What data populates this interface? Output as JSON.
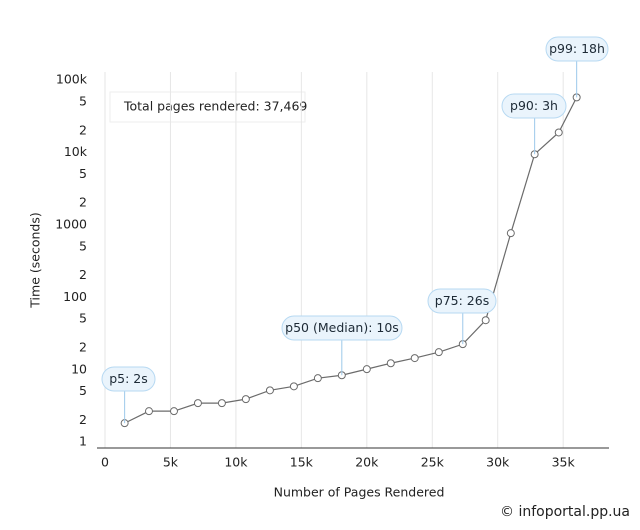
{
  "chart_data": {
    "type": "line",
    "x_label": "Number of Pages Rendered",
    "y_label": "Time (seconds)",
    "note": "Total pages rendered: 37,469",
    "watermark": "© infoportal.pp.ua",
    "log_y": true,
    "grid": true,
    "color": "#6b6b6b",
    "x": [
      1500,
      3360,
      5270,
      7100,
      8930,
      10760,
      12600,
      14430,
      16260,
      18090,
      20000,
      21830,
      23660,
      25500,
      27330,
      29080,
      31000,
      32820,
      34660,
      36030
    ],
    "values": [
      1.83,
      2.68,
      2.68,
      3.46,
      3.46,
      3.93,
      5.2,
      5.9,
      7.65,
      8.4,
      10.2,
      12.3,
      14.5,
      17.5,
      22.6,
      48.4,
      771,
      9500,
      19000,
      58000
    ],
    "annotations": [
      "p5: 2s",
      "p50 (Median): 10s",
      "p75: 26s",
      "p90: 3h",
      "p99: 18h"
    ],
    "xlim": [
      0,
      38500
    ],
    "xticks": [
      0,
      {
        "value": 5000,
        "label": "5k"
      },
      {
        "value": 10000,
        "label": "10k"
      },
      {
        "value": 15000,
        "label": "15k"
      },
      {
        "value": 20000,
        "label": "20k"
      },
      {
        "value": 25000,
        "label": "25k"
      },
      {
        "value": 30000,
        "label": "30k"
      },
      {
        "value": 35000,
        "label": "35k"
      }
    ],
    "ylim": [
      0.83,
      130000
    ],
    "yticks": [
      1,
      2,
      5,
      10,
      {
        "value": 20,
        "label": "2"
      },
      {
        "value": 50,
        "label": "5"
      },
      100,
      {
        "value": 200,
        "label": "2"
      },
      {
        "value": 500,
        "label": "5"
      },
      1000,
      {
        "value": 2000,
        "label": "2"
      },
      {
        "value": 5000,
        "label": "5"
      },
      {
        "value": 10000,
        "label": "10k"
      },
      {
        "value": 20000,
        "label": "2"
      },
      {
        "value": 50000,
        "label": "5"
      },
      {
        "value": 100000,
        "label": "100k"
      }
    ]
  }
}
